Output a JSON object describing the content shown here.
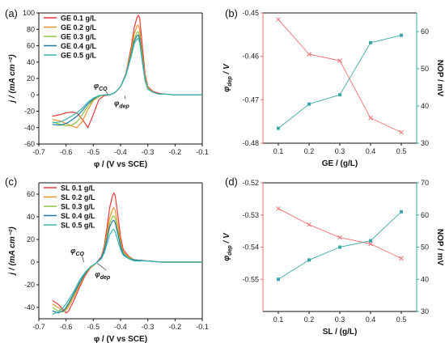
{
  "chart_data": [
    {
      "panel": "a",
      "panel_label": "(a)",
      "type": "line",
      "xlabel": "φ / (V vs SCE)",
      "ylabel": "j / (mA cm⁻²)",
      "xlim": [
        -0.7,
        -0.1
      ],
      "ylim": [
        -60,
        100
      ],
      "xticks": [
        -0.7,
        -0.6,
        -0.5,
        -0.4,
        -0.3,
        -0.2,
        -0.1
      ],
      "yticks": [
        -60,
        -40,
        -20,
        0,
        20,
        40,
        60,
        80,
        100
      ],
      "legend_position": "top-left",
      "grid": false,
      "annotations": [
        {
          "text": "φCO",
          "x": -0.475,
          "y": 8,
          "arrow_to": [
            -0.445,
            0
          ]
        },
        {
          "text": "φdep",
          "x": -0.4,
          "y": -13,
          "arrow_to": [
            -0.385,
            -1
          ]
        }
      ],
      "series": [
        {
          "name": "GE 0.1 g/L",
          "color": "#e8393a",
          "x": [
            -0.65,
            -0.62,
            -0.6,
            -0.58,
            -0.56,
            -0.54,
            -0.52,
            -0.5,
            -0.48,
            -0.46,
            -0.44,
            -0.42,
            -0.4,
            -0.38,
            -0.36,
            -0.35,
            -0.34,
            -0.335,
            -0.33,
            -0.32,
            -0.31,
            -0.3,
            -0.28,
            -0.26,
            -0.24,
            -0.2,
            -0.15,
            -0.1
          ],
          "y": [
            -26,
            -24,
            -22,
            -21,
            -22,
            -30,
            -40,
            -24,
            -6,
            -1,
            0,
            3,
            10,
            26,
            60,
            82,
            94,
            97,
            94,
            60,
            25,
            10,
            4,
            2,
            1,
            0,
            0,
            0
          ]
        },
        {
          "name": "GE 0.2 g/L",
          "color": "#f0902a",
          "x": [
            -0.65,
            -0.62,
            -0.6,
            -0.58,
            -0.56,
            -0.54,
            -0.52,
            -0.5,
            -0.48,
            -0.46,
            -0.44,
            -0.42,
            -0.4,
            -0.38,
            -0.36,
            -0.35,
            -0.34,
            -0.335,
            -0.33,
            -0.32,
            -0.31,
            -0.3,
            -0.28,
            -0.26,
            -0.24,
            -0.2,
            -0.15,
            -0.1
          ],
          "y": [
            -30,
            -32,
            -35,
            -38,
            -40,
            -32,
            -18,
            -7,
            -2,
            0,
            0,
            3,
            10,
            26,
            55,
            74,
            84,
            85,
            80,
            50,
            22,
            9,
            3,
            1,
            1,
            0,
            0,
            0
          ]
        },
        {
          "name": "GE 0.3 g/L",
          "color": "#8cc63f",
          "x": [
            -0.65,
            -0.62,
            -0.6,
            -0.58,
            -0.56,
            -0.54,
            -0.52,
            -0.5,
            -0.48,
            -0.46,
            -0.44,
            -0.42,
            -0.4,
            -0.38,
            -0.36,
            -0.35,
            -0.34,
            -0.335,
            -0.33,
            -0.32,
            -0.31,
            -0.3,
            -0.28,
            -0.26,
            -0.24,
            -0.2,
            -0.15,
            -0.1
          ],
          "y": [
            -33,
            -36,
            -38,
            -37,
            -33,
            -24,
            -14,
            -6,
            -2,
            0,
            0,
            3,
            10,
            25,
            52,
            68,
            76,
            77,
            72,
            46,
            20,
            8,
            3,
            1,
            1,
            0,
            0,
            0
          ]
        },
        {
          "name": "GE 0.4 g/L",
          "color": "#1f77a4",
          "x": [
            -0.65,
            -0.62,
            -0.6,
            -0.58,
            -0.56,
            -0.54,
            -0.52,
            -0.5,
            -0.48,
            -0.46,
            -0.44,
            -0.42,
            -0.4,
            -0.38,
            -0.36,
            -0.35,
            -0.34,
            -0.335,
            -0.33,
            -0.32,
            -0.31,
            -0.3,
            -0.28,
            -0.26,
            -0.24,
            -0.2,
            -0.15,
            -0.1
          ],
          "y": [
            -36,
            -37,
            -35,
            -31,
            -26,
            -19,
            -11,
            -5,
            -1,
            0,
            0,
            3,
            10,
            25,
            50,
            65,
            72,
            73,
            68,
            43,
            18,
            7,
            3,
            1,
            1,
            0,
            0,
            0
          ]
        },
        {
          "name": "GE 0.5 g/L",
          "color": "#3ab5b0",
          "x": [
            -0.65,
            -0.62,
            -0.6,
            -0.58,
            -0.56,
            -0.54,
            -0.52,
            -0.5,
            -0.48,
            -0.46,
            -0.44,
            -0.42,
            -0.4,
            -0.38,
            -0.36,
            -0.35,
            -0.34,
            -0.335,
            -0.33,
            -0.32,
            -0.31,
            -0.3,
            -0.28,
            -0.26,
            -0.24,
            -0.2,
            -0.15,
            -0.1
          ],
          "y": [
            -34,
            -33,
            -30,
            -26,
            -22,
            -16,
            -9,
            -4,
            -1,
            0,
            0,
            3,
            10,
            24,
            48,
            62,
            68,
            69,
            64,
            40,
            17,
            7,
            3,
            1,
            1,
            0,
            0,
            0
          ]
        }
      ]
    },
    {
      "panel": "b",
      "panel_label": "(b)",
      "type": "line",
      "xlabel": "GE / (g/L)",
      "ylabel": "φdep / V",
      "ylabel_right": "NOP / mV",
      "xlim": [
        0.05,
        0.55
      ],
      "xticks": [
        0.1,
        0.2,
        0.3,
        0.4,
        0.5
      ],
      "ylim": [
        -0.48,
        -0.45
      ],
      "yticks": [
        -0.48,
        -0.47,
        -0.46,
        -0.45
      ],
      "ylim_right": [
        30,
        65
      ],
      "yticks_right": [
        30,
        40,
        50,
        60
      ],
      "left_axis_color": "#f07070",
      "right_axis_color": "#3aa8a8",
      "grid": false,
      "series": [
        {
          "axis": "left",
          "color": "#f07070",
          "marker": "x",
          "x": [
            0.1,
            0.2,
            0.3,
            0.4,
            0.5
          ],
          "y": [
            -0.4515,
            -0.4595,
            -0.461,
            -0.4742,
            -0.4775
          ]
        },
        {
          "axis": "right",
          "color": "#3aa8a8",
          "marker": "square",
          "x": [
            0.1,
            0.2,
            0.3,
            0.4,
            0.5
          ],
          "y": [
            34,
            40.5,
            43,
            57,
            59
          ]
        }
      ]
    },
    {
      "panel": "c",
      "panel_label": "(c)",
      "type": "line",
      "xlabel": "φ / (V vs SCE)",
      "ylabel": "j / (mA cm⁻²)",
      "xlim": [
        -0.7,
        -0.1
      ],
      "ylim": [
        -50,
        70
      ],
      "xticks": [
        -0.7,
        -0.6,
        -0.5,
        -0.4,
        -0.3,
        -0.2,
        -0.1
      ],
      "yticks": [
        -40,
        -20,
        0,
        20,
        40,
        60
      ],
      "legend_position": "top-left",
      "grid": false,
      "annotations": [
        {
          "text": "φCO",
          "x": -0.56,
          "y": 8,
          "arrow_to": [
            -0.535,
            0
          ]
        },
        {
          "text": "φdep",
          "x": -0.47,
          "y": -13,
          "arrow_to": [
            -0.485,
            -1
          ]
        }
      ],
      "series": [
        {
          "name": "SL 0.1 g/L",
          "color": "#e8393a",
          "x": [
            -0.65,
            -0.63,
            -0.61,
            -0.6,
            -0.59,
            -0.57,
            -0.55,
            -0.53,
            -0.51,
            -0.49,
            -0.47,
            -0.46,
            -0.45,
            -0.44,
            -0.43,
            -0.425,
            -0.42,
            -0.41,
            -0.4,
            -0.39,
            -0.37,
            -0.35,
            -0.3,
            -0.25,
            -0.2,
            -0.1
          ],
          "y": [
            -34,
            -37,
            -42,
            -45,
            -43,
            -33,
            -22,
            -12,
            -5,
            -1,
            5,
            14,
            30,
            48,
            58,
            61,
            59,
            42,
            22,
            11,
            5,
            2,
            1,
            0,
            0,
            0
          ]
        },
        {
          "name": "SL 0.2 g/L",
          "color": "#f0902a",
          "x": [
            -0.65,
            -0.63,
            -0.61,
            -0.6,
            -0.59,
            -0.57,
            -0.55,
            -0.53,
            -0.51,
            -0.49,
            -0.47,
            -0.46,
            -0.45,
            -0.44,
            -0.43,
            -0.425,
            -0.42,
            -0.41,
            -0.4,
            -0.39,
            -0.37,
            -0.35,
            -0.3,
            -0.25,
            -0.2,
            -0.1
          ],
          "y": [
            -37,
            -40,
            -43,
            -42,
            -39,
            -30,
            -20,
            -11,
            -5,
            -1,
            4,
            12,
            25,
            39,
            46,
            48,
            46,
            33,
            18,
            9,
            4,
            2,
            1,
            0,
            0,
            0
          ]
        },
        {
          "name": "SL 0.3 g/L",
          "color": "#8cc63f",
          "x": [
            -0.65,
            -0.63,
            -0.61,
            -0.6,
            -0.59,
            -0.57,
            -0.55,
            -0.53,
            -0.51,
            -0.49,
            -0.47,
            -0.46,
            -0.45,
            -0.44,
            -0.43,
            -0.425,
            -0.42,
            -0.41,
            -0.4,
            -0.39,
            -0.37,
            -0.35,
            -0.3,
            -0.25,
            -0.2,
            -0.1
          ],
          "y": [
            -40,
            -43,
            -44,
            -41,
            -37,
            -28,
            -19,
            -10,
            -4,
            -1,
            4,
            11,
            22,
            34,
            40,
            41,
            39,
            28,
            15,
            8,
            4,
            2,
            1,
            0,
            0,
            0
          ]
        },
        {
          "name": "SL 0.4 g/L",
          "color": "#1f77a4",
          "x": [
            -0.65,
            -0.63,
            -0.61,
            -0.6,
            -0.59,
            -0.57,
            -0.55,
            -0.53,
            -0.51,
            -0.49,
            -0.47,
            -0.46,
            -0.45,
            -0.44,
            -0.43,
            -0.425,
            -0.42,
            -0.41,
            -0.4,
            -0.39,
            -0.37,
            -0.35,
            -0.3,
            -0.25,
            -0.2,
            -0.1
          ],
          "y": [
            -43,
            -45,
            -43,
            -40,
            -36,
            -27,
            -18,
            -10,
            -4,
            -1,
            4,
            10,
            20,
            31,
            36,
            37,
            35,
            25,
            14,
            7,
            3,
            2,
            1,
            0,
            0,
            0
          ]
        },
        {
          "name": "SL 0.5 g/L",
          "color": "#3ab5b0",
          "x": [
            -0.65,
            -0.63,
            -0.61,
            -0.6,
            -0.59,
            -0.57,
            -0.55,
            -0.53,
            -0.51,
            -0.49,
            -0.47,
            -0.46,
            -0.45,
            -0.44,
            -0.43,
            -0.425,
            -0.42,
            -0.41,
            -0.4,
            -0.39,
            -0.37,
            -0.35,
            -0.3,
            -0.25,
            -0.2,
            -0.1
          ],
          "y": [
            -46,
            -44,
            -40,
            -37,
            -33,
            -25,
            -16,
            -9,
            -4,
            -1,
            3,
            8,
            16,
            24,
            28,
            29,
            27,
            19,
            11,
            6,
            3,
            1,
            1,
            0,
            0,
            0
          ]
        }
      ]
    },
    {
      "panel": "d",
      "panel_label": "(d)",
      "type": "line",
      "xlabel": "SL / (g/L)",
      "ylabel": "φdep / V",
      "ylabel_right": "NOP / mV",
      "xlim": [
        0.05,
        0.55
      ],
      "xticks": [
        0.1,
        0.2,
        0.3,
        0.4,
        0.5
      ],
      "ylim": [
        -0.56,
        -0.52
      ],
      "yticks": [
        -0.55,
        -0.54,
        -0.53,
        -0.52
      ],
      "ylim_right": [
        30,
        70
      ],
      "yticks_right": [
        30,
        40,
        50,
        60,
        70
      ],
      "left_axis_color": "#f07070",
      "right_axis_color": "#3aa8a8",
      "grid": false,
      "series": [
        {
          "axis": "left",
          "color": "#f07070",
          "marker": "x",
          "x": [
            0.1,
            0.2,
            0.3,
            0.4,
            0.5
          ],
          "y": [
            -0.528,
            -0.533,
            -0.537,
            -0.539,
            -0.5435
          ]
        },
        {
          "axis": "right",
          "color": "#3aa8a8",
          "marker": "square",
          "x": [
            0.1,
            0.2,
            0.3,
            0.4,
            0.5
          ],
          "y": [
            40,
            46,
            50,
            52,
            61
          ]
        }
      ]
    }
  ]
}
